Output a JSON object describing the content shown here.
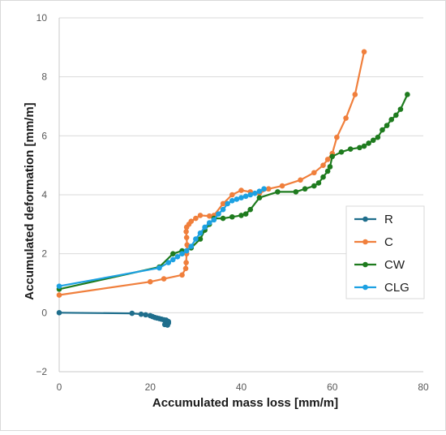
{
  "chart_data": {
    "type": "line",
    "title": "",
    "xlabel": "Accumulated mass loss [mm/m]",
    "ylabel": "Accumulated deformation [mm/m]",
    "xlim": [
      0,
      80
    ],
    "ylim": [
      -2,
      10
    ],
    "xticks": [
      "0",
      "20",
      "40",
      "60",
      "80"
    ],
    "yticks": [
      "−2",
      "0",
      "2",
      "4",
      "6",
      "8",
      "10"
    ],
    "grid": "horizontal",
    "legend_position": "right",
    "series": [
      {
        "name": "R",
        "color": "#1f6e8c",
        "x": [
          0,
          16,
          18,
          19,
          20,
          20.5,
          21,
          21.5,
          22,
          22.5,
          23,
          23.3,
          23.6,
          23.8,
          24,
          23.2,
          23.8,
          24,
          23.5
        ],
        "y": [
          0,
          -0.02,
          -0.05,
          -0.07,
          -0.1,
          -0.13,
          -0.16,
          -0.18,
          -0.2,
          -0.22,
          -0.24,
          -0.28,
          -0.3,
          -0.33,
          -0.35,
          -0.4,
          -0.42,
          -0.3,
          -0.25
        ]
      },
      {
        "name": "C",
        "color": "#f07f3c",
        "x": [
          0,
          20,
          23,
          27,
          27.8,
          27.9,
          28,
          28.1,
          28,
          27.9,
          28,
          28.5,
          29,
          30,
          31,
          33,
          34,
          36,
          38,
          40,
          42,
          44,
          46,
          49,
          53,
          56,
          58,
          59,
          60,
          61,
          63,
          65,
          67
        ],
        "y": [
          0.6,
          1.05,
          1.15,
          1.28,
          1.5,
          1.7,
          2.0,
          2.3,
          2.55,
          2.75,
          2.9,
          3.0,
          3.1,
          3.2,
          3.3,
          3.28,
          3.3,
          3.7,
          4.0,
          4.15,
          4.1,
          4.05,
          4.2,
          4.3,
          4.5,
          4.75,
          5.0,
          5.2,
          5.4,
          5.95,
          6.6,
          7.4,
          8.85
        ]
      },
      {
        "name": "CW",
        "color": "#1e7b1e",
        "x": [
          0,
          22,
          25,
          27,
          29,
          31,
          32,
          33,
          34,
          36,
          38,
          40,
          41,
          42,
          44,
          48,
          52,
          54,
          56,
          57,
          58,
          59,
          59.5,
          60,
          62,
          64,
          66,
          67,
          68,
          69,
          70,
          71,
          72,
          73,
          74,
          75,
          76.5
        ],
        "y": [
          0.8,
          1.55,
          2.0,
          2.1,
          2.2,
          2.5,
          2.8,
          3.0,
          3.2,
          3.2,
          3.25,
          3.3,
          3.35,
          3.5,
          3.9,
          4.1,
          4.1,
          4.2,
          4.3,
          4.4,
          4.6,
          4.8,
          4.95,
          5.3,
          5.45,
          5.55,
          5.6,
          5.65,
          5.75,
          5.85,
          5.95,
          6.2,
          6.35,
          6.55,
          6.7,
          6.9,
          7.4
        ]
      },
      {
        "name": "CLG",
        "color": "#1da1e2",
        "x": [
          0,
          22,
          24,
          25,
          26,
          27,
          28,
          29,
          30,
          31,
          32,
          33,
          34,
          35,
          36,
          37,
          38,
          39,
          40,
          41,
          42,
          43,
          44,
          45
        ],
        "y": [
          0.9,
          1.52,
          1.7,
          1.8,
          1.9,
          2.0,
          2.1,
          2.25,
          2.5,
          2.7,
          2.9,
          3.05,
          3.15,
          3.35,
          3.5,
          3.7,
          3.8,
          3.85,
          3.9,
          3.95,
          4.0,
          4.05,
          4.12,
          4.2
        ]
      }
    ]
  }
}
